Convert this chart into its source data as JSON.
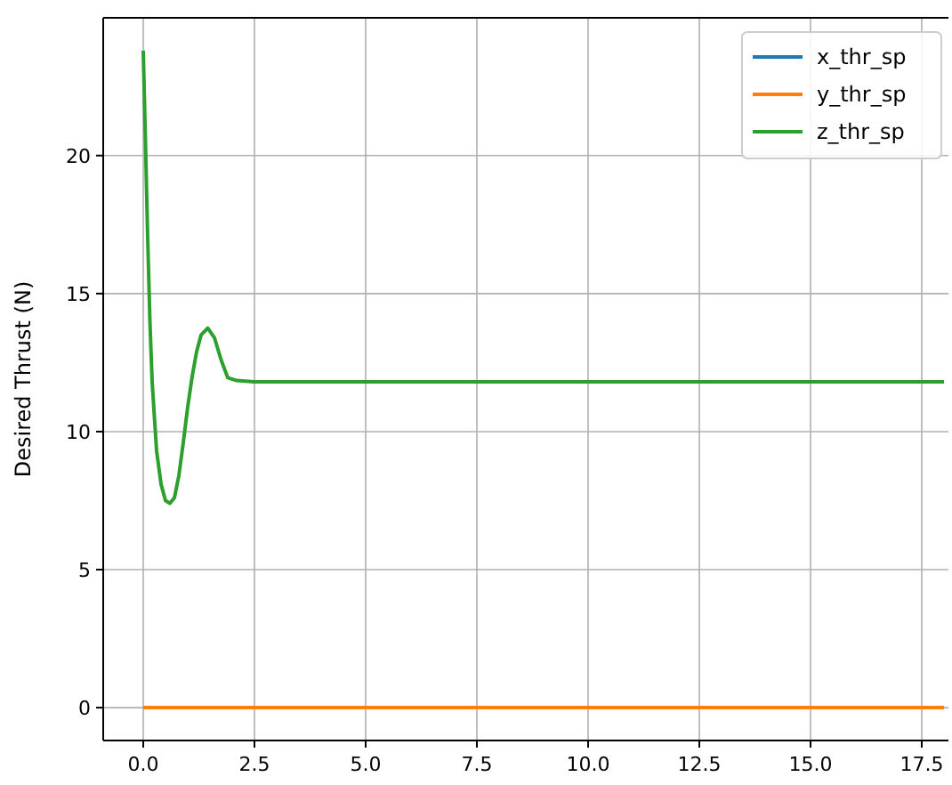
{
  "chart_data": {
    "type": "line",
    "ylabel": "Desired Thrust (N)",
    "xlim": [
      -0.9,
      18.1
    ],
    "ylim": [
      -1.19,
      24.99
    ],
    "xticks": [
      {
        "value": 0,
        "label": "0.0"
      },
      {
        "value": 2.5,
        "label": "2.5"
      },
      {
        "value": 5,
        "label": "5.0"
      },
      {
        "value": 7.5,
        "label": "7.5"
      },
      {
        "value": 10,
        "label": "10.0"
      },
      {
        "value": 12.5,
        "label": "12.5"
      },
      {
        "value": 15,
        "label": "15.0"
      },
      {
        "value": 17.5,
        "label": "17.5"
      }
    ],
    "yticks": [
      0,
      5,
      10,
      15,
      20
    ],
    "grid": true,
    "legend": "top right",
    "marker": "none",
    "line_style": "solid",
    "series": [
      {
        "name": "x_thr_sp",
        "color": "#1f77b4"
      },
      {
        "name": "y_thr_sp",
        "color": "#ff7f0e",
        "x": [
          0,
          18
        ],
        "values": [
          0,
          0
        ]
      },
      {
        "name": "z_thr_sp",
        "color": "#2ca02c",
        "x": [
          0,
          0.05,
          0.1,
          0.15,
          0.2,
          0.3,
          0.4,
          0.5,
          0.6,
          0.7,
          0.8,
          0.9,
          1.0,
          1.1,
          1.2,
          1.3,
          1.45,
          1.6,
          1.75,
          1.9,
          2.1,
          2.5,
          18
        ],
        "values": [
          23.8,
          20.5,
          17,
          14,
          11.8,
          9.3,
          8.1,
          7.5,
          7.4,
          7.6,
          8.4,
          9.6,
          10.9,
          12.0,
          12.9,
          13.5,
          13.75,
          13.4,
          12.6,
          11.95,
          11.85,
          11.8,
          11.8
        ]
      }
    ]
  }
}
